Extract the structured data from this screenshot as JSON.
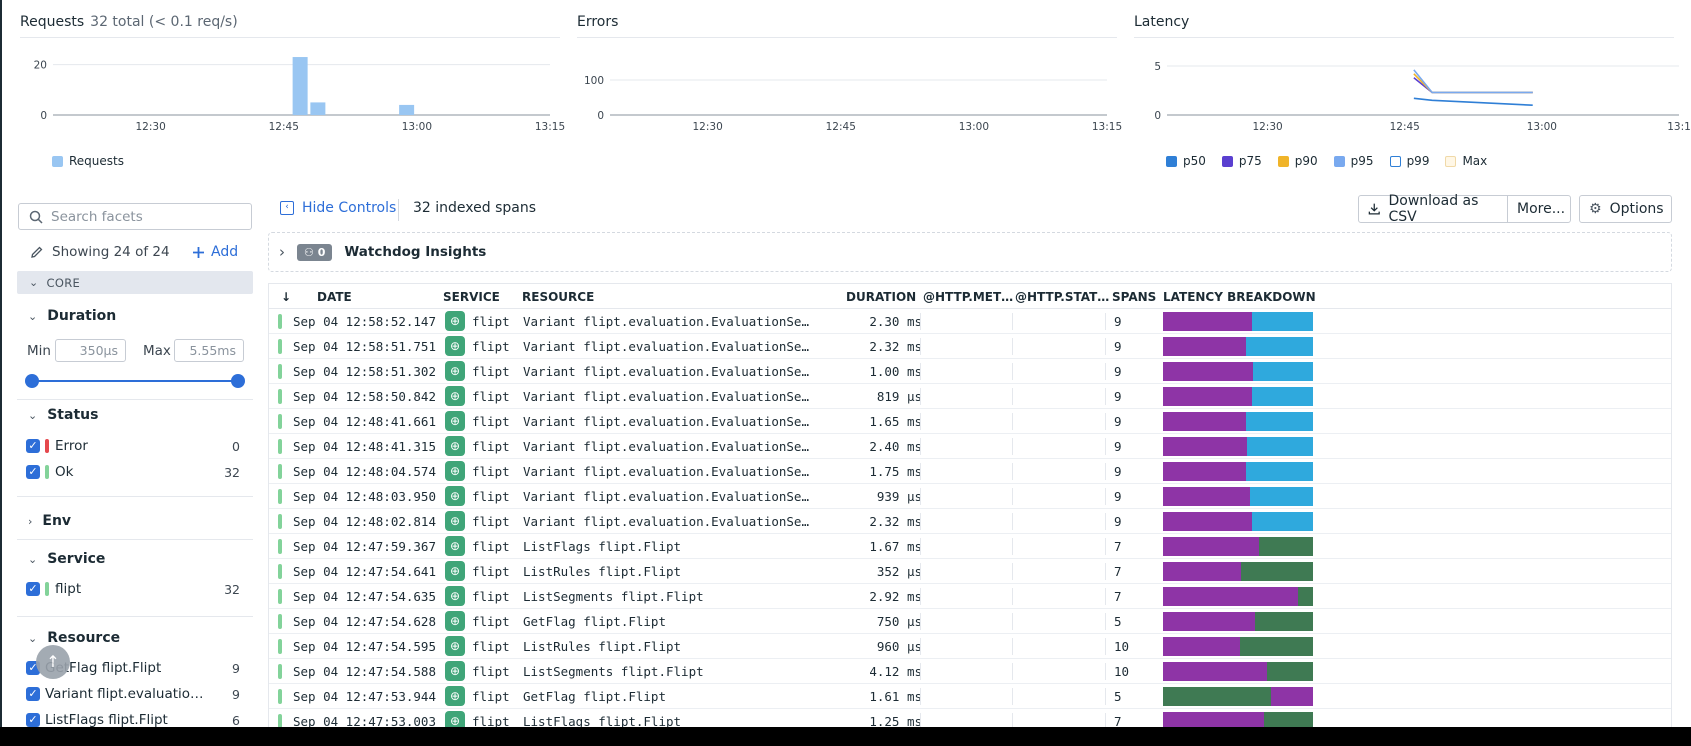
{
  "colors": {
    "accent": "#2d6ed8",
    "requests_bar": "#99c6f2",
    "ok_status": "#83d39a",
    "error_status": "#e5484d",
    "lat_purple": "#8e34a6",
    "lat_blue": "#2fa9dd",
    "lat_green": "#3f7a53"
  },
  "charts": {
    "requests": {
      "title": "Requests",
      "subtitle": "32 total (< 0.1 req/s)",
      "legend": [
        "Requests"
      ]
    },
    "errors": {
      "title": "Errors"
    },
    "latency": {
      "title": "Latency",
      "legend": [
        "p50",
        "p75",
        "p90",
        "p95",
        "p99",
        "Max"
      ]
    }
  },
  "chart_data": [
    {
      "type": "bar",
      "title": "Requests",
      "x_ticks": [
        "12:30",
        "12:45",
        "13:00",
        "13:15"
      ],
      "y_ticks": [
        0,
        20
      ],
      "ylim": [
        0,
        25
      ],
      "series": [
        {
          "name": "Requests",
          "color": "#99c6f2",
          "bars": [
            {
              "t": "12:46",
              "value": 23
            },
            {
              "t": "12:48",
              "value": 5
            },
            {
              "t": "12:58",
              "value": 4
            }
          ]
        }
      ]
    },
    {
      "type": "line",
      "title": "Errors",
      "x_ticks": [
        "12:30",
        "12:45",
        "13:00",
        "13:15"
      ],
      "y_ticks": [
        0,
        100
      ],
      "ylim": [
        0,
        100
      ],
      "series": []
    },
    {
      "type": "line",
      "title": "Latency",
      "x_ticks": [
        "12:30",
        "12:45",
        "13:00",
        "13:1"
      ],
      "y_ticks": [
        0,
        5
      ],
      "ylim": [
        0,
        5
      ],
      "series": [
        {
          "name": "p50",
          "color": "#2f7fd6",
          "points": [
            [
              "12:46",
              1.7
            ],
            [
              "12:48",
              1.5
            ],
            [
              "12:59",
              1.0
            ]
          ]
        },
        {
          "name": "p75",
          "color": "#5a3fd0",
          "points": [
            [
              "12:46",
              3.8
            ],
            [
              "12:48",
              2.3
            ],
            [
              "12:59",
              2.3
            ]
          ]
        },
        {
          "name": "p90",
          "color": "#f0b429",
          "points": [
            [
              "12:46",
              4.2
            ],
            [
              "12:48",
              2.3
            ],
            [
              "12:59",
              2.3
            ]
          ]
        },
        {
          "name": "p95",
          "color": "#79a9ef",
          "points": [
            [
              "12:46",
              4.6
            ],
            [
              "12:48",
              2.3
            ],
            [
              "12:59",
              2.3
            ]
          ]
        }
      ]
    }
  ],
  "sidebar": {
    "search_placeholder": "Search facets",
    "showing": "Showing 24 of 24",
    "add_label": "Add",
    "core_label": "CORE",
    "duration": {
      "title": "Duration",
      "min_label": "Min",
      "min_value": "350µs",
      "max_label": "Max",
      "max_value": "5.55ms"
    },
    "status": {
      "title": "Status",
      "items": [
        {
          "label": "Error",
          "count": "0"
        },
        {
          "label": "Ok",
          "count": "32"
        }
      ]
    },
    "env": {
      "title": "Env"
    },
    "service": {
      "title": "Service",
      "items": [
        {
          "label": "flipt",
          "count": "32"
        }
      ]
    },
    "resource": {
      "title": "Resource",
      "items": [
        {
          "label": "GetFlag flipt.Flipt",
          "count": "9"
        },
        {
          "label": "Variant flipt.evaluatio…",
          "count": "9"
        },
        {
          "label": "ListFlags flipt.Flipt",
          "count": "6"
        }
      ]
    }
  },
  "toolbar": {
    "hide_controls": "Hide Controls",
    "indexed": "32 indexed spans",
    "download": "Download as CSV",
    "more": "More...",
    "options": "Options",
    "watchdog_count": "0",
    "watchdog_label": "Watchdog Insights"
  },
  "table": {
    "columns": {
      "date": "DATE",
      "service": "SERVICE",
      "resource": "RESOURCE",
      "duration": "DURATION",
      "method": "@HTTP.MET…",
      "status": "@HTTP.STAT…",
      "spans": "SPANS",
      "latency": "LATENCY BREAKDOWN"
    },
    "rows": [
      {
        "date": "Sep 04 12:58:52.147",
        "service": "flipt",
        "resource": "Variant flipt.evaluation.EvaluationServ…",
        "duration": "2.30 ms",
        "spans": "9",
        "breakdown": [
          {
            "color": "purple",
            "pct": 59
          },
          {
            "color": "blue",
            "pct": 41
          }
        ]
      },
      {
        "date": "Sep 04 12:58:51.751",
        "service": "flipt",
        "resource": "Variant flipt.evaluation.EvaluationServ…",
        "duration": "2.32 ms",
        "spans": "9",
        "breakdown": [
          {
            "color": "purple",
            "pct": 55
          },
          {
            "color": "blue",
            "pct": 45
          }
        ]
      },
      {
        "date": "Sep 04 12:58:51.302",
        "service": "flipt",
        "resource": "Variant flipt.evaluation.EvaluationServ…",
        "duration": "1.00 ms",
        "spans": "9",
        "breakdown": [
          {
            "color": "purple",
            "pct": 60
          },
          {
            "color": "blue",
            "pct": 40
          }
        ]
      },
      {
        "date": "Sep 04 12:58:50.842",
        "service": "flipt",
        "resource": "Variant flipt.evaluation.EvaluationServ…",
        "duration": "819 µs",
        "spans": "9",
        "breakdown": [
          {
            "color": "purple",
            "pct": 59
          },
          {
            "color": "blue",
            "pct": 41
          }
        ]
      },
      {
        "date": "Sep 04 12:48:41.661",
        "service": "flipt",
        "resource": "Variant flipt.evaluation.EvaluationServ…",
        "duration": "1.65 ms",
        "spans": "9",
        "breakdown": [
          {
            "color": "purple",
            "pct": 55
          },
          {
            "color": "blue",
            "pct": 45
          }
        ]
      },
      {
        "date": "Sep 04 12:48:41.315",
        "service": "flipt",
        "resource": "Variant flipt.evaluation.EvaluationServ…",
        "duration": "2.40 ms",
        "spans": "9",
        "breakdown": [
          {
            "color": "purple",
            "pct": 56
          },
          {
            "color": "blue",
            "pct": 44
          }
        ]
      },
      {
        "date": "Sep 04 12:48:04.574",
        "service": "flipt",
        "resource": "Variant flipt.evaluation.EvaluationServ…",
        "duration": "1.75 ms",
        "spans": "9",
        "breakdown": [
          {
            "color": "purple",
            "pct": 55
          },
          {
            "color": "blue",
            "pct": 45
          }
        ]
      },
      {
        "date": "Sep 04 12:48:03.950",
        "service": "flipt",
        "resource": "Variant flipt.evaluation.EvaluationServ…",
        "duration": "939 µs",
        "spans": "9",
        "breakdown": [
          {
            "color": "purple",
            "pct": 58
          },
          {
            "color": "blue",
            "pct": 42
          }
        ]
      },
      {
        "date": "Sep 04 12:48:02.814",
        "service": "flipt",
        "resource": "Variant flipt.evaluation.EvaluationServ…",
        "duration": "2.32 ms",
        "spans": "9",
        "breakdown": [
          {
            "color": "purple",
            "pct": 59
          },
          {
            "color": "blue",
            "pct": 41
          }
        ]
      },
      {
        "date": "Sep 04 12:47:59.367",
        "service": "flipt",
        "resource": "ListFlags flipt.Flipt",
        "duration": "1.67 ms",
        "spans": "7",
        "breakdown": [
          {
            "color": "purple",
            "pct": 64
          },
          {
            "color": "green",
            "pct": 36
          }
        ]
      },
      {
        "date": "Sep 04 12:47:54.641",
        "service": "flipt",
        "resource": "ListRules flipt.Flipt",
        "duration": "352 µs",
        "spans": "7",
        "breakdown": [
          {
            "color": "purple",
            "pct": 52
          },
          {
            "color": "green",
            "pct": 48
          }
        ]
      },
      {
        "date": "Sep 04 12:47:54.635",
        "service": "flipt",
        "resource": "ListSegments flipt.Flipt",
        "duration": "2.92 ms",
        "spans": "7",
        "breakdown": [
          {
            "color": "purple",
            "pct": 90
          },
          {
            "color": "green",
            "pct": 10
          }
        ]
      },
      {
        "date": "Sep 04 12:47:54.628",
        "service": "flipt",
        "resource": "GetFlag flipt.Flipt",
        "duration": "750 µs",
        "spans": "5",
        "breakdown": [
          {
            "color": "purple",
            "pct": 61
          },
          {
            "color": "green",
            "pct": 39
          }
        ]
      },
      {
        "date": "Sep 04 12:47:54.595",
        "service": "flipt",
        "resource": "ListRules flipt.Flipt",
        "duration": "960 µs",
        "spans": "10",
        "breakdown": [
          {
            "color": "purple",
            "pct": 51
          },
          {
            "color": "green",
            "pct": 49
          }
        ]
      },
      {
        "date": "Sep 04 12:47:54.588",
        "service": "flipt",
        "resource": "ListSegments flipt.Flipt",
        "duration": "4.12 ms",
        "spans": "10",
        "breakdown": [
          {
            "color": "purple",
            "pct": 69
          },
          {
            "color": "green",
            "pct": 31
          }
        ]
      },
      {
        "date": "Sep 04 12:47:53.944",
        "service": "flipt",
        "resource": "GetFlag flipt.Flipt",
        "duration": "1.61 ms",
        "spans": "5",
        "breakdown": [
          {
            "color": "green",
            "pct": 72
          },
          {
            "color": "purple",
            "pct": 28
          }
        ]
      },
      {
        "date": "Sep 04 12:47:53.003",
        "service": "flipt",
        "resource": "ListFlags flipt.Flipt",
        "duration": "1.25 ms",
        "spans": "7",
        "breakdown": [
          {
            "color": "purple",
            "pct": 67
          },
          {
            "color": "green",
            "pct": 33
          }
        ]
      }
    ]
  }
}
